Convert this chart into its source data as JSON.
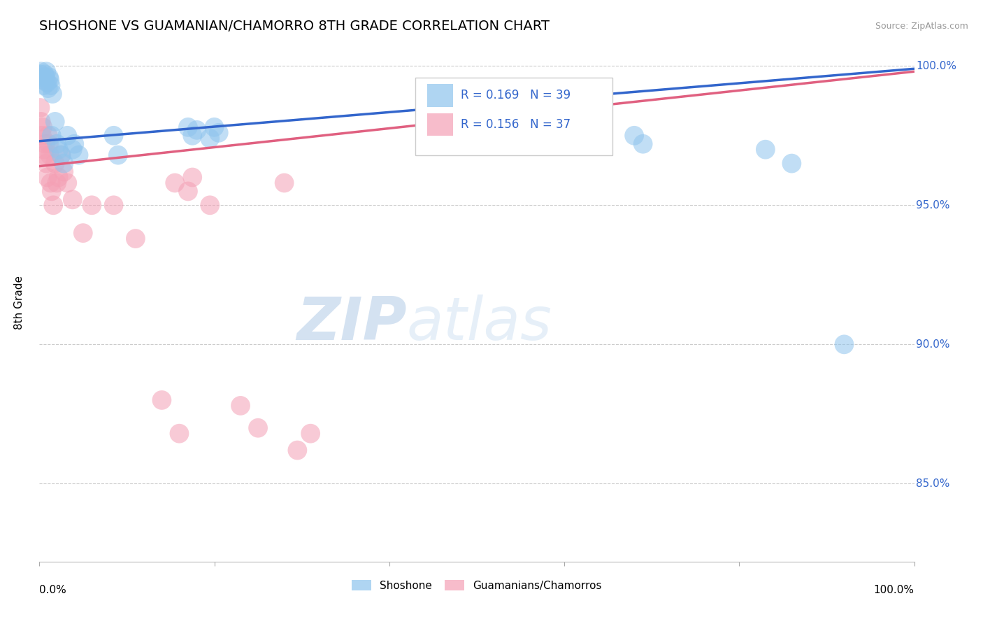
{
  "title": "SHOSHONE VS GUAMANIAN/CHAMORRO 8TH GRADE CORRELATION CHART",
  "source": "Source: ZipAtlas.com",
  "ylabel": "8th Grade",
  "xlim": [
    0.0,
    1.0
  ],
  "ylim": [
    0.822,
    1.008
  ],
  "yticks": [
    0.85,
    0.9,
    0.95,
    1.0
  ],
  "ytick_labels": [
    "85.0%",
    "90.0%",
    "95.0%",
    "100.0%"
  ],
  "legend_r_blue": "R = 0.169",
  "legend_n_blue": "N = 39",
  "legend_r_pink": "R = 0.156",
  "legend_n_pink": "N = 37",
  "legend_label_blue": "Shoshone",
  "legend_label_pink": "Guamanians/Chamorros",
  "blue_color": "#8EC4ED",
  "pink_color": "#F4A0B5",
  "blue_line_color": "#3366CC",
  "pink_line_color": "#E06080",
  "blue_line_x": [
    0.0,
    1.0
  ],
  "blue_line_y": [
    0.973,
    0.999
  ],
  "pink_line_x": [
    0.0,
    1.0
  ],
  "pink_line_y": [
    0.964,
    0.998
  ],
  "shoshone_x": [
    0.001,
    0.002,
    0.003,
    0.004,
    0.005,
    0.006,
    0.007,
    0.008,
    0.009,
    0.01,
    0.011,
    0.012,
    0.013,
    0.014,
    0.015,
    0.018,
    0.02,
    0.022,
    0.025,
    0.028,
    0.032,
    0.038,
    0.04,
    0.045,
    0.085,
    0.09,
    0.17,
    0.175,
    0.18,
    0.195,
    0.2,
    0.205,
    0.58,
    0.59,
    0.68,
    0.69,
    0.83,
    0.86,
    0.92
  ],
  "shoshone_y": [
    0.997,
    0.998,
    0.996,
    0.995,
    0.993,
    0.997,
    0.996,
    0.998,
    0.994,
    0.992,
    0.996,
    0.995,
    0.993,
    0.975,
    0.99,
    0.98,
    0.972,
    0.97,
    0.968,
    0.965,
    0.975,
    0.97,
    0.972,
    0.968,
    0.975,
    0.968,
    0.978,
    0.975,
    0.977,
    0.974,
    0.978,
    0.976,
    0.975,
    0.972,
    0.975,
    0.972,
    0.97,
    0.965,
    0.9
  ],
  "guamanian_x": [
    0.001,
    0.002,
    0.003,
    0.004,
    0.005,
    0.006,
    0.007,
    0.008,
    0.009,
    0.01,
    0.011,
    0.012,
    0.013,
    0.014,
    0.016,
    0.018,
    0.02,
    0.022,
    0.025,
    0.028,
    0.032,
    0.038,
    0.05,
    0.06,
    0.085,
    0.11,
    0.14,
    0.155,
    0.16,
    0.17,
    0.175,
    0.195,
    0.23,
    0.25,
    0.28,
    0.295,
    0.31
  ],
  "guamanian_y": [
    0.985,
    0.98,
    0.975,
    0.978,
    0.97,
    0.968,
    0.972,
    0.965,
    0.96,
    0.975,
    0.972,
    0.968,
    0.958,
    0.955,
    0.95,
    0.965,
    0.958,
    0.96,
    0.968,
    0.962,
    0.958,
    0.952,
    0.94,
    0.95,
    0.95,
    0.938,
    0.88,
    0.958,
    0.868,
    0.955,
    0.96,
    0.95,
    0.878,
    0.87,
    0.958,
    0.862,
    0.868
  ],
  "watermark_zip": "ZIP",
  "watermark_atlas": "atlas"
}
